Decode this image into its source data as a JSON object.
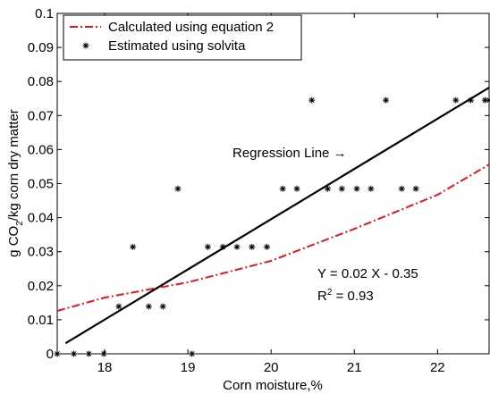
{
  "chart_data": {
    "type": "line",
    "x_label": "Corn moisture,%",
    "y_label": [
      "g CO",
      "2",
      "/kg corn dry matter"
    ],
    "xlim": [
      17.43,
      22.62
    ],
    "xticks": [
      18,
      19,
      20,
      21,
      22
    ],
    "ylim": [
      0,
      0.1
    ],
    "yticks": [
      0,
      0.01,
      0.02,
      0.03,
      0.04,
      0.05,
      0.06,
      0.07,
      0.08,
      0.09,
      0.1
    ],
    "grid": false,
    "legend": "upper left",
    "series": [
      {
        "name": "Calculated using equation 2",
        "color": "#e8141c",
        "style": "dashdot",
        "x": [
          17.43,
          18,
          19,
          20,
          21,
          22,
          22.62
        ],
        "values": [
          0.0126,
          0.0165,
          0.021,
          0.0273,
          0.0367,
          0.0467,
          0.0556
        ]
      },
      {
        "name": "Estimated using solvita",
        "color": "#000000",
        "style": "star",
        "x": [
          17.43,
          17.63,
          17.81,
          17.99,
          19.05,
          18.17,
          18.34,
          18.53,
          18.7,
          18.88,
          19.24,
          19.42,
          19.59,
          19.77,
          19.95,
          20.14,
          20.31,
          20.68,
          20.85,
          21.03,
          21.2,
          21.57,
          21.74,
          20.49,
          21.38,
          22.22,
          22.4,
          22.57,
          22.62
        ],
        "values": [
          0,
          0,
          0,
          0,
          0,
          0.0139,
          0.0314,
          0.0139,
          0.0139,
          0.0485,
          0.0314,
          0.0314,
          0.0314,
          0.0314,
          0.0314,
          0.0485,
          0.0485,
          0.0485,
          0.0485,
          0.0485,
          0.0485,
          0.0485,
          0.0485,
          0.0745,
          0.0745,
          0.0745,
          0.0745,
          0.0745,
          0.0745
        ]
      }
    ],
    "regression_line": {
      "color": "#000000",
      "x": [
        17.53,
        22.62
      ],
      "values": [
        0.0031,
        0.0782
      ]
    },
    "annotations": {
      "regression": "Regression Line →",
      "equation": "Y = 0.02 X - 0.35",
      "r_squared": [
        "R",
        "2",
        " = 0.93"
      ]
    }
  }
}
